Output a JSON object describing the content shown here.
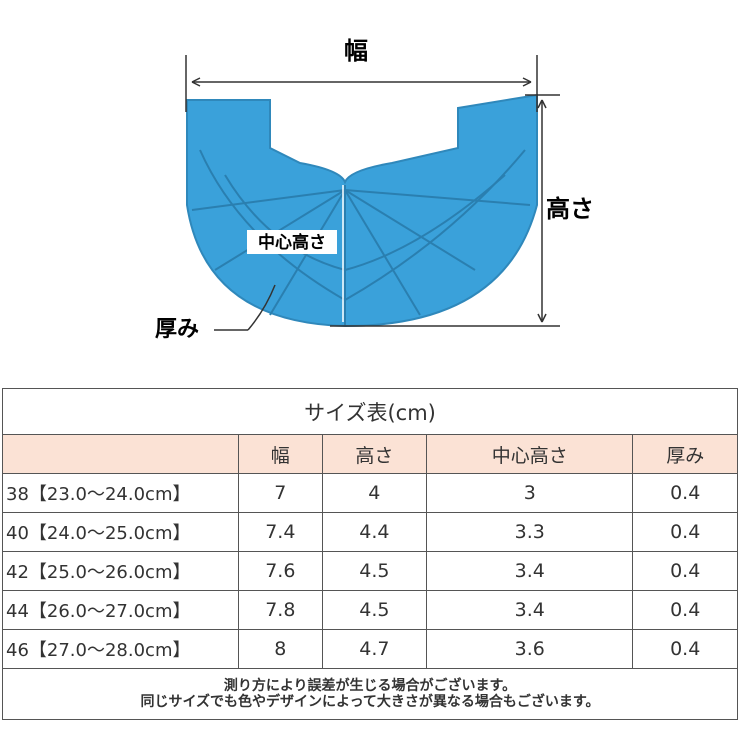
{
  "diagram": {
    "width_label": "幅",
    "height_label": "高さ",
    "center_height_label": "中心高さ",
    "thickness_label": "厚み"
  },
  "table": {
    "title": "サイズ表(cm)",
    "headers": [
      "幅",
      "高さ",
      "中心高さ",
      "厚み"
    ],
    "rows": [
      [
        "38【23.0〜24.0cm】",
        "7",
        "4",
        "3",
        "0.4"
      ],
      [
        "40【24.0〜25.0cm】",
        "7.4",
        "4.4",
        "3.3",
        "0.4"
      ],
      [
        "42【25.0〜26.0cm】",
        "7.6",
        "4.5",
        "3.4",
        "0.4"
      ],
      [
        "44【26.0〜27.0cm】",
        "7.8",
        "4.5",
        "3.4",
        "0.4"
      ],
      [
        "46【27.0〜28.0cm】",
        "8",
        "4.7",
        "3.6",
        "0.4"
      ]
    ],
    "notes": [
      "測り方により誤差が生じる場合がございます。",
      "同じサイズでも色やデザインによって大きさが異なる場合もございます。"
    ]
  }
}
